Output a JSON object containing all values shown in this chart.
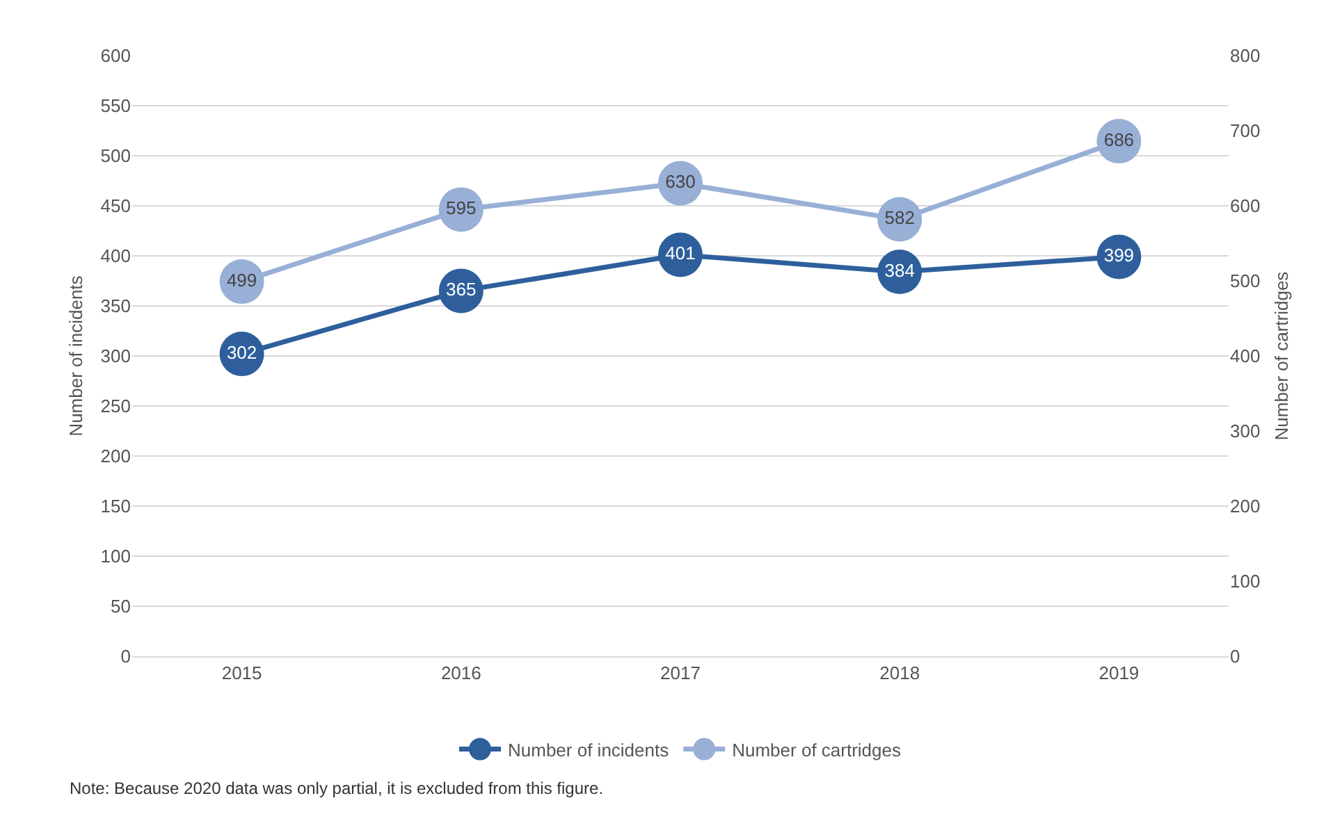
{
  "chart_data": {
    "type": "line",
    "categories": [
      "2015",
      "2016",
      "2017",
      "2018",
      "2019"
    ],
    "series": [
      {
        "name": "Number of incidents",
        "color": "#2e5f9c",
        "values": [
          302,
          365,
          401,
          384,
          399
        ]
      },
      {
        "name": "Number of cartridges",
        "color": "#98afd6",
        "values": [
          499,
          595,
          630,
          582,
          686
        ],
        "axis": "y2"
      }
    ],
    "ylabel": "Number of incidents",
    "y2label": "Number of cartridges",
    "ylim": [
      0,
      600
    ],
    "yticks": [
      0,
      50,
      100,
      150,
      200,
      250,
      300,
      350,
      400,
      450,
      500,
      550,
      600
    ],
    "y2lim": [
      0,
      800
    ],
    "y2ticks": [
      0,
      100,
      200,
      300,
      400,
      500,
      600,
      700,
      800
    ],
    "grid": "y",
    "legend": "bottom",
    "marker": "circle",
    "data_labels": true,
    "annotations": [
      "Note: Because 2020 data was only partial, it is excluded from this figure."
    ]
  }
}
